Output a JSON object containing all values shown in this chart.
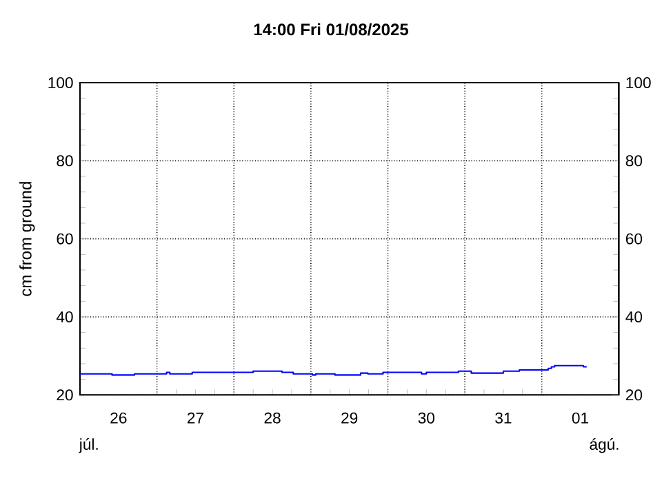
{
  "chart_data": {
    "type": "step",
    "title": "14:00   Fri  01/08/2025",
    "ylabel": "cm from ground",
    "annotations": [
      "júl.",
      "ágú."
    ],
    "xlim": [
      "2025-07-26T00:00",
      "2025-08-02T00:00"
    ],
    "xticks": [
      {
        "value": "2025-07-26T12:00",
        "label": "26"
      },
      {
        "value": "2025-07-27T00:00",
        "label": null
      },
      {
        "value": "2025-07-27T12:00",
        "label": "27"
      },
      {
        "value": "2025-07-28T00:00",
        "label": null
      },
      {
        "value": "2025-07-28T12:00",
        "label": "28"
      },
      {
        "value": "2025-07-29T00:00",
        "label": null
      },
      {
        "value": "2025-07-29T12:00",
        "label": "29"
      },
      {
        "value": "2025-07-30T00:00",
        "label": null
      },
      {
        "value": "2025-07-30T12:00",
        "label": "30"
      },
      {
        "value": "2025-07-31T00:00",
        "label": null
      },
      {
        "value": "2025-07-31T12:00",
        "label": "31"
      },
      {
        "value": "2025-08-01T00:00",
        "label": null
      },
      {
        "value": "2025-08-01T12:00",
        "label": "01"
      }
    ],
    "ylim": [
      20,
      100
    ],
    "yticks": [
      20,
      40,
      60,
      80,
      100
    ],
    "y2lim": [
      20,
      100
    ],
    "y2ticks": [
      20,
      40,
      60,
      80,
      100
    ],
    "grid": true,
    "series": [
      {
        "color": "#0000ff",
        "line_style": "solid",
        "x": [
          "2025-07-26T00:00",
          "2025-07-26T10:00",
          "2025-07-26T17:00",
          "2025-07-27T03:00",
          "2025-07-27T04:00",
          "2025-07-27T11:00",
          "2025-07-28T06:00",
          "2025-07-28T15:00",
          "2025-07-28T18:30",
          "2025-07-29T00:30",
          "2025-07-29T01:30",
          "2025-07-29T07:30",
          "2025-07-29T15:30",
          "2025-07-29T17:45",
          "2025-07-29T22:30",
          "2025-07-30T10:30",
          "2025-07-30T12:00",
          "2025-07-30T22:00",
          "2025-07-31T02:00",
          "2025-07-31T12:00",
          "2025-07-31T17:00",
          "2025-08-01T02:00",
          "2025-08-01T03:00",
          "2025-08-01T04:00",
          "2025-08-01T05:30",
          "2025-08-01T13:00",
          "2025-08-01T14:00"
        ],
        "values": [
          25.4,
          25.1,
          25.4,
          25.8,
          25.4,
          25.8,
          26.1,
          25.8,
          25.4,
          25.1,
          25.4,
          25.1,
          25.6,
          25.4,
          25.8,
          25.4,
          25.8,
          26.1,
          25.6,
          26.1,
          26.4,
          26.8,
          27.2,
          27.5,
          27.5,
          27.2,
          27.2
        ]
      }
    ]
  }
}
